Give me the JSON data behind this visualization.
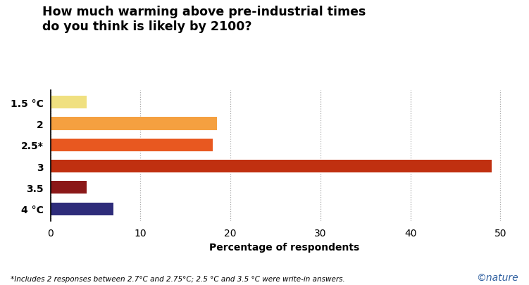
{
  "categories": [
    "1.5 °C",
    "2",
    "2.5*",
    "3",
    "3.5",
    "4 °C"
  ],
  "values": [
    4.0,
    18.5,
    18.0,
    49.0,
    4.0,
    7.0
  ],
  "bar_colors": [
    "#f0e080",
    "#f5a040",
    "#e85820",
    "#c03010",
    "#8b1818",
    "#2e2c7a"
  ],
  "title_line1": "How much warming above pre-industrial times",
  "title_line2": "do you think is likely by 2100?",
  "xlabel": "Percentage of respondents",
  "xlim": [
    0,
    52
  ],
  "xticks": [
    0,
    10,
    20,
    30,
    40,
    50
  ],
  "footnote": "*Includes 2 responses between 2.7°C and 2.75°C; 2.5 °C and 3.5 °C were write-in answers.",
  "nature_credit": "©nature",
  "title_fontsize": 12.5,
  "label_fontsize": 10,
  "tick_fontsize": 10,
  "footnote_fontsize": 7.5,
  "background_color": "#ffffff",
  "grid_color": "#aaaaaa"
}
